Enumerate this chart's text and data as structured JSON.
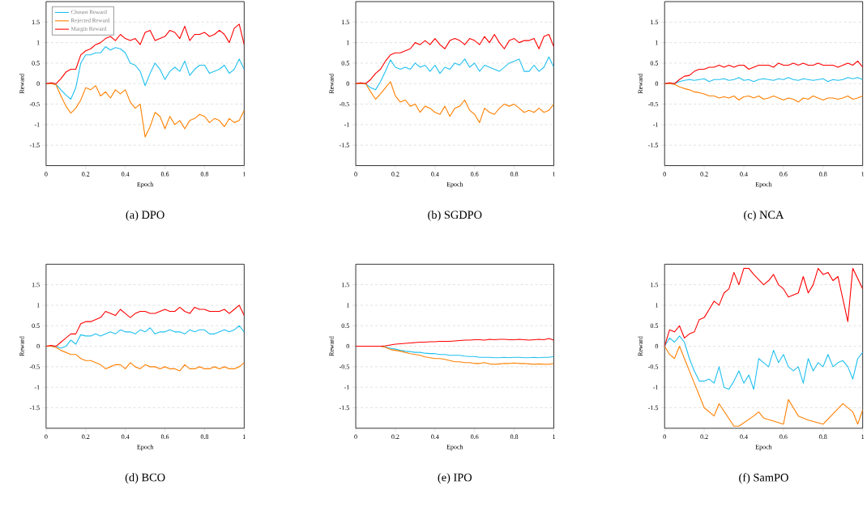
{
  "chart_data": [
    {
      "type": "line",
      "title": "(a) DPO",
      "xlabel": "Epoch",
      "ylabel": "Reward",
      "xlim": [
        0,
        1
      ],
      "ylim": [
        -2,
        2
      ],
      "xticks": [
        0,
        0.2,
        0.4,
        0.6,
        0.8,
        1
      ],
      "yticks": [
        -1.5,
        -1,
        -0.5,
        0,
        0.5,
        1,
        1.5
      ],
      "grid": "y",
      "legend": "top left",
      "x": [
        0,
        0.025,
        0.05,
        0.075,
        0.1,
        0.125,
        0.15,
        0.175,
        0.2,
        0.225,
        0.25,
        0.275,
        0.3,
        0.325,
        0.35,
        0.375,
        0.4,
        0.425,
        0.45,
        0.475,
        0.5,
        0.525,
        0.55,
        0.575,
        0.6,
        0.625,
        0.65,
        0.675,
        0.7,
        0.725,
        0.75,
        0.775,
        0.8,
        0.825,
        0.85,
        0.875,
        0.9,
        0.925,
        0.95,
        0.975,
        1
      ],
      "series": [
        {
          "name": "Chosen Reward",
          "color": "#20c0f0",
          "values": [
            0,
            0,
            -0.02,
            -0.15,
            -0.28,
            -0.38,
            -0.1,
            0.5,
            0.7,
            0.7,
            0.75,
            0.75,
            0.9,
            0.82,
            0.88,
            0.85,
            0.75,
            0.5,
            0.45,
            0.3,
            -0.05,
            0.25,
            0.5,
            0.35,
            0.1,
            0.3,
            0.4,
            0.3,
            0.55,
            0.2,
            0.35,
            0.45,
            0.45,
            0.25,
            0.3,
            0.35,
            0.45,
            0.25,
            0.35,
            0.6,
            0.35
          ]
        },
        {
          "name": "Rejected Reward",
          "color": "#ff8000",
          "values": [
            0,
            0,
            -0.03,
            -0.3,
            -0.55,
            -0.72,
            -0.6,
            -0.4,
            -0.1,
            -0.15,
            -0.05,
            -0.3,
            -0.2,
            -0.35,
            -0.15,
            -0.25,
            -0.15,
            -0.45,
            -0.6,
            -0.5,
            -1.3,
            -1.05,
            -0.7,
            -0.8,
            -1.1,
            -0.8,
            -1.0,
            -0.9,
            -1.1,
            -0.9,
            -0.85,
            -0.75,
            -0.8,
            -0.95,
            -0.85,
            -0.9,
            -1.05,
            -0.85,
            -0.95,
            -0.9,
            -0.65
          ]
        },
        {
          "name": "Margin Reward",
          "color": "#ff0000",
          "values": [
            0,
            0.02,
            0,
            0.12,
            0.28,
            0.35,
            0.35,
            0.7,
            0.8,
            0.85,
            0.95,
            1.0,
            1.1,
            1.15,
            1.05,
            1.2,
            1.1,
            1.05,
            1.1,
            0.95,
            1.25,
            1.3,
            1.05,
            1.1,
            1.15,
            1.3,
            1.25,
            1.1,
            1.4,
            1.05,
            1.2,
            1.2,
            1.25,
            1.15,
            1.2,
            1.3,
            1.2,
            1.0,
            1.35,
            1.45,
            0.95
          ]
        }
      ]
    },
    {
      "type": "line",
      "title": "(b) SGDPO",
      "xlabel": "Epoch",
      "ylabel": "Reward",
      "xlim": [
        0,
        1
      ],
      "ylim": [
        -2,
        2
      ],
      "xticks": [
        0,
        0.2,
        0.4,
        0.6,
        0.8,
        1
      ],
      "yticks": [
        -1.5,
        -1,
        -0.5,
        0,
        0.5,
        1,
        1.5
      ],
      "grid": "y",
      "x": [
        0,
        0.025,
        0.05,
        0.075,
        0.1,
        0.125,
        0.15,
        0.175,
        0.2,
        0.225,
        0.25,
        0.275,
        0.3,
        0.325,
        0.35,
        0.375,
        0.4,
        0.425,
        0.45,
        0.475,
        0.5,
        0.525,
        0.55,
        0.575,
        0.6,
        0.625,
        0.65,
        0.675,
        0.7,
        0.725,
        0.75,
        0.775,
        0.8,
        0.825,
        0.85,
        0.875,
        0.9,
        0.925,
        0.95,
        0.975,
        1
      ],
      "series": [
        {
          "color": "#20c0f0",
          "values": [
            0,
            0,
            0,
            -0.1,
            -0.15,
            0.05,
            0.3,
            0.58,
            0.4,
            0.35,
            0.4,
            0.35,
            0.5,
            0.4,
            0.45,
            0.3,
            0.45,
            0.25,
            0.4,
            0.35,
            0.5,
            0.45,
            0.6,
            0.4,
            0.5,
            0.3,
            0.45,
            0.4,
            0.35,
            0.3,
            0.4,
            0.5,
            0.55,
            0.6,
            0.3,
            0.3,
            0.45,
            0.3,
            0.4,
            0.65,
            0.4
          ]
        },
        {
          "color": "#ff8000",
          "values": [
            0,
            0,
            0,
            -0.2,
            -0.38,
            -0.25,
            -0.1,
            0.05,
            -0.3,
            -0.45,
            -0.4,
            -0.55,
            -0.5,
            -0.7,
            -0.55,
            -0.6,
            -0.7,
            -0.75,
            -0.55,
            -0.8,
            -0.6,
            -0.55,
            -0.4,
            -0.65,
            -0.75,
            -0.95,
            -0.6,
            -0.7,
            -0.75,
            -0.6,
            -0.5,
            -0.55,
            -0.5,
            -0.6,
            -0.7,
            -0.65,
            -0.7,
            -0.6,
            -0.7,
            -0.65,
            -0.5
          ]
        },
        {
          "color": "#ff0000",
          "values": [
            0,
            0.02,
            0,
            0.1,
            0.25,
            0.35,
            0.55,
            0.7,
            0.75,
            0.75,
            0.8,
            0.85,
            1.0,
            0.95,
            1.05,
            0.95,
            1.1,
            0.95,
            0.85,
            1.05,
            1.1,
            1.05,
            0.95,
            1.1,
            1.05,
            0.95,
            1.15,
            1.0,
            1.2,
            1.0,
            0.85,
            1.05,
            1.1,
            1.0,
            1.05,
            1.05,
            1.1,
            0.85,
            1.15,
            1.2,
            0.9
          ]
        }
      ]
    },
    {
      "type": "line",
      "title": "(c) NCA",
      "xlabel": "Epoch",
      "ylabel": "Reward",
      "xlim": [
        0,
        1
      ],
      "ylim": [
        -2,
        2
      ],
      "xticks": [
        0,
        0.2,
        0.4,
        0.6,
        0.8,
        1
      ],
      "yticks": [
        -1.5,
        -1,
        -0.5,
        0,
        0.5,
        1,
        1.5
      ],
      "grid": "y",
      "x": [
        0,
        0.025,
        0.05,
        0.075,
        0.1,
        0.125,
        0.15,
        0.175,
        0.2,
        0.225,
        0.25,
        0.275,
        0.3,
        0.325,
        0.35,
        0.375,
        0.4,
        0.425,
        0.45,
        0.475,
        0.5,
        0.525,
        0.55,
        0.575,
        0.6,
        0.625,
        0.65,
        0.675,
        0.7,
        0.725,
        0.75,
        0.775,
        0.8,
        0.825,
        0.85,
        0.875,
        0.9,
        0.925,
        0.95,
        0.975,
        1
      ],
      "series": [
        {
          "color": "#20c0f0",
          "values": [
            0,
            0,
            0,
            0.05,
            0.08,
            0.1,
            0.08,
            0.1,
            0.12,
            0.05,
            0.1,
            0.1,
            0.12,
            0.08,
            0.1,
            0.15,
            0.08,
            0.1,
            0.05,
            0.1,
            0.12,
            0.1,
            0.08,
            0.12,
            0.1,
            0.15,
            0.1,
            0.08,
            0.12,
            0.1,
            0.08,
            0.1,
            0.12,
            0.05,
            0.1,
            0.08,
            0.1,
            0.15,
            0.12,
            0.15,
            0.1
          ]
        },
        {
          "color": "#ff8000",
          "values": [
            0,
            0,
            -0.02,
            -0.08,
            -0.12,
            -0.15,
            -0.2,
            -0.22,
            -0.25,
            -0.3,
            -0.3,
            -0.35,
            -0.32,
            -0.35,
            -0.3,
            -0.4,
            -0.32,
            -0.3,
            -0.35,
            -0.3,
            -0.38,
            -0.35,
            -0.3,
            -0.35,
            -0.4,
            -0.35,
            -0.38,
            -0.45,
            -0.35,
            -0.38,
            -0.3,
            -0.35,
            -0.4,
            -0.35,
            -0.35,
            -0.38,
            -0.35,
            -0.3,
            -0.38,
            -0.35,
            -0.3
          ]
        },
        {
          "color": "#ff0000",
          "values": [
            0,
            0.02,
            0,
            0.1,
            0.18,
            0.2,
            0.3,
            0.35,
            0.35,
            0.4,
            0.4,
            0.45,
            0.4,
            0.45,
            0.4,
            0.45,
            0.45,
            0.35,
            0.4,
            0.45,
            0.45,
            0.45,
            0.4,
            0.5,
            0.45,
            0.45,
            0.5,
            0.45,
            0.5,
            0.45,
            0.45,
            0.5,
            0.45,
            0.45,
            0.45,
            0.4,
            0.45,
            0.5,
            0.45,
            0.55,
            0.4
          ]
        }
      ]
    },
    {
      "type": "line",
      "title": "(d) BCO",
      "xlabel": "Epoch",
      "ylabel": "Reward",
      "xlim": [
        0,
        1
      ],
      "ylim": [
        -2,
        2
      ],
      "xticks": [
        0,
        0.2,
        0.4,
        0.6,
        0.8,
        1
      ],
      "yticks": [
        -1.5,
        -1,
        -0.5,
        0,
        0.5,
        1,
        1.5
      ],
      "grid": "y",
      "x": [
        0,
        0.025,
        0.05,
        0.075,
        0.1,
        0.125,
        0.15,
        0.175,
        0.2,
        0.225,
        0.25,
        0.275,
        0.3,
        0.325,
        0.35,
        0.375,
        0.4,
        0.425,
        0.45,
        0.475,
        0.5,
        0.525,
        0.55,
        0.575,
        0.6,
        0.625,
        0.65,
        0.675,
        0.7,
        0.725,
        0.75,
        0.775,
        0.8,
        0.825,
        0.85,
        0.875,
        0.9,
        0.925,
        0.95,
        0.975,
        1
      ],
      "series": [
        {
          "color": "#20c0f0",
          "values": [
            0,
            0,
            0,
            -0.05,
            0,
            0.15,
            0.05,
            0.28,
            0.25,
            0.25,
            0.3,
            0.25,
            0.3,
            0.35,
            0.3,
            0.4,
            0.35,
            0.35,
            0.3,
            0.4,
            0.35,
            0.45,
            0.3,
            0.35,
            0.35,
            0.4,
            0.35,
            0.35,
            0.3,
            0.4,
            0.35,
            0.4,
            0.4,
            0.3,
            0.3,
            0.35,
            0.4,
            0.35,
            0.4,
            0.5,
            0.35
          ]
        },
        {
          "color": "#ff8000",
          "values": [
            0,
            0,
            -0.03,
            -0.1,
            -0.15,
            -0.2,
            -0.2,
            -0.3,
            -0.35,
            -0.35,
            -0.4,
            -0.45,
            -0.55,
            -0.5,
            -0.45,
            -0.45,
            -0.55,
            -0.4,
            -0.5,
            -0.55,
            -0.45,
            -0.5,
            -0.5,
            -0.55,
            -0.5,
            -0.55,
            -0.55,
            -0.6,
            -0.45,
            -0.55,
            -0.55,
            -0.5,
            -0.55,
            -0.55,
            -0.5,
            -0.55,
            -0.5,
            -0.55,
            -0.55,
            -0.5,
            -0.4
          ]
        },
        {
          "color": "#ff0000",
          "values": [
            0,
            0.02,
            0,
            0.1,
            0.2,
            0.3,
            0.3,
            0.55,
            0.6,
            0.6,
            0.65,
            0.7,
            0.85,
            0.8,
            0.75,
            0.9,
            0.8,
            0.7,
            0.8,
            0.85,
            0.85,
            0.8,
            0.8,
            0.85,
            0.9,
            0.85,
            0.85,
            0.95,
            0.85,
            0.8,
            0.95,
            0.9,
            0.9,
            0.85,
            0.85,
            0.85,
            0.9,
            0.8,
            0.9,
            1.0,
            0.75
          ]
        }
      ]
    },
    {
      "type": "line",
      "title": "(e) IPO",
      "xlabel": "Epoch",
      "ylabel": "Reward",
      "xlim": [
        0,
        1
      ],
      "ylim": [
        -2,
        2
      ],
      "xticks": [
        0,
        0.2,
        0.4,
        0.6,
        0.8,
        1
      ],
      "yticks": [
        -1.5,
        -1,
        -0.5,
        0,
        0.5,
        1,
        1.5
      ],
      "grid": "y",
      "x": [
        0,
        0.025,
        0.05,
        0.075,
        0.1,
        0.125,
        0.15,
        0.175,
        0.2,
        0.225,
        0.25,
        0.275,
        0.3,
        0.325,
        0.35,
        0.375,
        0.4,
        0.425,
        0.45,
        0.475,
        0.5,
        0.525,
        0.55,
        0.575,
        0.6,
        0.625,
        0.65,
        0.675,
        0.7,
        0.725,
        0.75,
        0.775,
        0.8,
        0.825,
        0.85,
        0.875,
        0.9,
        0.925,
        0.95,
        0.975,
        1
      ],
      "series": [
        {
          "color": "#20c0f0",
          "values": [
            null,
            null,
            null,
            null,
            null,
            0,
            -0.02,
            -0.05,
            -0.07,
            -0.1,
            -0.12,
            -0.13,
            -0.15,
            -0.15,
            -0.17,
            -0.18,
            -0.18,
            -0.2,
            -0.2,
            -0.22,
            -0.22,
            -0.22,
            -0.24,
            -0.25,
            -0.25,
            -0.27,
            -0.27,
            -0.27,
            -0.28,
            -0.28,
            -0.27,
            -0.28,
            -0.27,
            -0.27,
            -0.28,
            -0.28,
            -0.27,
            -0.28,
            -0.27,
            -0.27,
            -0.25
          ]
        },
        {
          "color": "#ff8000",
          "values": [
            null,
            null,
            null,
            null,
            0,
            0,
            -0.03,
            -0.08,
            -0.1,
            -0.12,
            -0.15,
            -0.18,
            -0.2,
            -0.22,
            -0.26,
            -0.28,
            -0.3,
            -0.3,
            -0.32,
            -0.35,
            -0.38,
            -0.38,
            -0.4,
            -0.4,
            -0.42,
            -0.42,
            -0.4,
            -0.43,
            -0.44,
            -0.43,
            -0.42,
            -0.42,
            -0.41,
            -0.42,
            -0.42,
            -0.43,
            -0.44,
            -0.43,
            -0.44,
            -0.44,
            -0.42
          ]
        },
        {
          "color": "#ff0000",
          "values": [
            0,
            0,
            0,
            0,
            0,
            0,
            0.01,
            0.03,
            0.05,
            0.06,
            0.07,
            0.08,
            0.09,
            0.1,
            0.1,
            0.11,
            0.11,
            0.12,
            0.12,
            0.12,
            0.13,
            0.14,
            0.15,
            0.15,
            0.16,
            0.16,
            0.15,
            0.17,
            0.16,
            0.17,
            0.17,
            0.16,
            0.16,
            0.17,
            0.16,
            0.15,
            0.16,
            0.17,
            0.16,
            0.19,
            0.15
          ]
        }
      ]
    },
    {
      "type": "line",
      "title": "(f) SamPO",
      "xlabel": "Epoch",
      "ylabel": "Reward",
      "xlim": [
        0,
        1
      ],
      "ylim": [
        -2,
        2
      ],
      "xticks": [
        0,
        0.2,
        0.4,
        0.6,
        0.8,
        1
      ],
      "yticks": [
        -1.5,
        -1,
        -0.5,
        0,
        0.5,
        1,
        1.5
      ],
      "grid": "y",
      "x": [
        0,
        0.025,
        0.05,
        0.075,
        0.1,
        0.125,
        0.15,
        0.175,
        0.2,
        0.225,
        0.25,
        0.275,
        0.3,
        0.325,
        0.35,
        0.375,
        0.4,
        0.425,
        0.45,
        0.475,
        0.5,
        0.525,
        0.55,
        0.575,
        0.6,
        0.625,
        0.65,
        0.675,
        0.7,
        0.725,
        0.75,
        0.775,
        0.8,
        0.825,
        0.85,
        0.875,
        0.9,
        0.925,
        0.95,
        0.975,
        1
      ],
      "series": [
        {
          "color": "#20c0f0",
          "values": [
            0,
            0.2,
            0.1,
            0.25,
            0.1,
            -0.3,
            -0.6,
            -0.85,
            -0.85,
            -0.8,
            -0.9,
            -0.5,
            -1.0,
            -1.05,
            -0.85,
            -0.6,
            -0.9,
            -0.7,
            -1.05,
            -0.3,
            -0.4,
            -0.5,
            -0.1,
            -0.4,
            -0.2,
            -0.5,
            -0.6,
            -0.5,
            -0.9,
            -0.3,
            -0.6,
            -0.4,
            -0.5,
            -0.2,
            -0.5,
            -0.4,
            -0.35,
            -0.5,
            -0.8,
            -0.3,
            -0.15
          ]
        },
        {
          "color": "#ff8000",
          "values": [
            0,
            -0.2,
            -0.3,
            0,
            -0.3,
            -0.6,
            -0.9,
            -1.2,
            -1.5,
            -1.6,
            -1.7,
            -1.4,
            null,
            null,
            -1.95,
            -1.95,
            null,
            null,
            -1.7,
            -1.6,
            -1.75,
            null,
            null,
            null,
            -1.9,
            -1.3,
            null,
            -1.7,
            null,
            -1.8,
            null,
            null,
            -1.9,
            null,
            null,
            null,
            -1.4,
            null,
            -1.6,
            -1.9,
            -1.55
          ]
        },
        {
          "color": "#ff0000",
          "values": [
            0,
            0.4,
            0.35,
            0.5,
            0.2,
            0.3,
            0.35,
            0.65,
            0.7,
            0.9,
            1.1,
            1.0,
            1.3,
            1.4,
            1.8,
            1.5,
            1.9,
            1.9,
            1.75,
            null,
            1.5,
            1.6,
            1.75,
            1.5,
            1.4,
            1.2,
            null,
            1.3,
            1.7,
            1.3,
            1.5,
            1.9,
            1.75,
            1.8,
            1.6,
            1.7,
            null,
            0.6,
            1.9,
            null,
            1.4
          ]
        }
      ]
    }
  ]
}
